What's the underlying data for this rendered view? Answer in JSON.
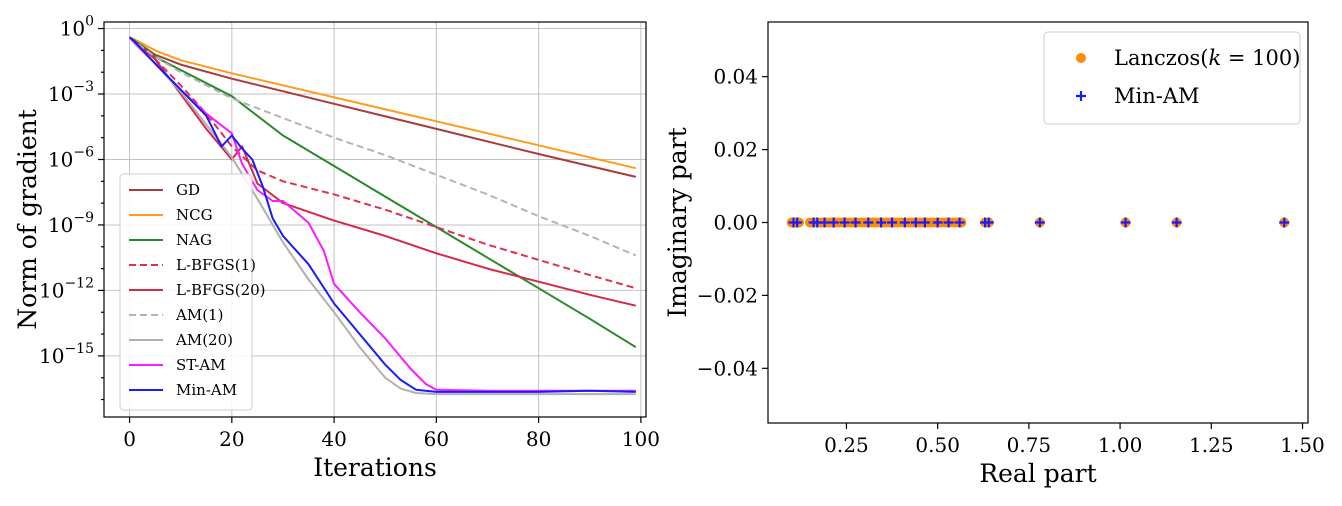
{
  "chart_data": [
    {
      "type": "line",
      "title": "",
      "xlabel": "Iterations",
      "ylabel": "Norm of gradient",
      "xlim": [
        -5,
        101
      ],
      "ylim_log10": [
        -17.8,
        0.3
      ],
      "yscale": "log",
      "grid": true,
      "legend_placement": "lower-left",
      "xticks": [
        0,
        20,
        40,
        60,
        80,
        100
      ],
      "yticks_exp": [
        0,
        -3,
        -6,
        -9,
        -12,
        -15
      ],
      "series": [
        {
          "name": "GD",
          "color": "#a83c3c",
          "dash": "solid",
          "x": [
            0,
            1,
            5,
            10,
            20,
            40,
            60,
            80,
            99
          ],
          "y_log10": [
            -0.4,
            -0.55,
            -1.2,
            -1.65,
            -2.3,
            -3.45,
            -4.6,
            -5.75,
            -6.8
          ]
        },
        {
          "name": "NCG",
          "color": "#ff9c1a",
          "dash": "solid",
          "x": [
            0,
            1,
            5,
            10,
            20,
            40,
            60,
            80,
            99
          ],
          "y_log10": [
            -0.4,
            -0.5,
            -1.0,
            -1.45,
            -2.05,
            -3.15,
            -4.25,
            -5.35,
            -6.4
          ]
        },
        {
          "name": "NAG",
          "color": "#2a8a2a",
          "dash": "solid",
          "x": [
            0,
            1,
            5,
            10,
            20,
            30,
            40,
            50,
            60,
            70,
            80,
            90,
            99
          ],
          "y_log10": [
            -0.4,
            -0.55,
            -1.3,
            -1.9,
            -3.1,
            -4.9,
            -6.3,
            -7.7,
            -9.1,
            -10.5,
            -11.9,
            -13.3,
            -14.6
          ]
        },
        {
          "name": "L-BFGS(1)",
          "color": "#e03050",
          "dash": "dashed",
          "x": [
            0,
            1,
            5,
            10,
            15,
            20,
            25,
            30,
            40,
            50,
            60,
            70,
            80,
            90,
            99
          ],
          "y_log10": [
            -0.4,
            -0.6,
            -1.4,
            -2.6,
            -3.9,
            -5.4,
            -6.5,
            -7.0,
            -7.6,
            -8.3,
            -9.1,
            -9.9,
            -10.6,
            -11.3,
            -11.9
          ]
        },
        {
          "name": "L-BFGS(20)",
          "color": "#d42a48",
          "dash": "solid",
          "x": [
            0,
            1,
            5,
            10,
            15,
            20,
            22,
            25,
            30,
            40,
            50,
            60,
            70,
            80,
            90,
            99
          ],
          "y_log10": [
            -0.4,
            -0.6,
            -1.4,
            -3.0,
            -4.6,
            -6.0,
            -5.4,
            -7.1,
            -8.0,
            -8.8,
            -9.5,
            -10.3,
            -11.0,
            -11.6,
            -12.2,
            -12.7
          ]
        },
        {
          "name": "AM(1)",
          "color": "#b4b4b4",
          "dash": "dashed",
          "x": [
            0,
            1,
            5,
            10,
            20,
            30,
            40,
            50,
            60,
            70,
            80,
            90,
            99
          ],
          "y_log10": [
            -0.4,
            -0.6,
            -1.3,
            -2.0,
            -3.2,
            -4.1,
            -5.0,
            -5.8,
            -6.7,
            -7.6,
            -8.6,
            -9.5,
            -10.4
          ]
        },
        {
          "name": "AM(20)",
          "color": "#b0b0b0",
          "dash": "solid",
          "x": [
            0,
            1,
            5,
            10,
            15,
            20,
            25,
            30,
            35,
            40,
            45,
            50,
            53,
            56,
            60,
            70,
            80,
            90,
            99
          ],
          "y_log10": [
            -0.4,
            -0.7,
            -1.6,
            -2.9,
            -4.4,
            -5.9,
            -7.8,
            -9.8,
            -11.5,
            -13.0,
            -14.6,
            -16.0,
            -16.5,
            -16.7,
            -16.75,
            -16.75,
            -16.75,
            -16.75,
            -16.75
          ]
        },
        {
          "name": "ST-AM",
          "color": "#ff1aff",
          "dash": "solid",
          "x": [
            0,
            1,
            5,
            10,
            15,
            20,
            22,
            25,
            28,
            30,
            35,
            38,
            40,
            45,
            50,
            55,
            58,
            60,
            70,
            80,
            90,
            99
          ],
          "y_log10": [
            -0.4,
            -0.65,
            -1.6,
            -2.8,
            -3.9,
            -4.8,
            -6.2,
            -7.4,
            -7.9,
            -7.9,
            -8.9,
            -10.2,
            -11.7,
            -13.0,
            -14.2,
            -15.6,
            -16.3,
            -16.55,
            -16.6,
            -16.6,
            -16.6,
            -16.6
          ]
        },
        {
          "name": "Min-AM",
          "color": "#1a1aff",
          "dash": "solid",
          "x": [
            0,
            1,
            5,
            10,
            15,
            18,
            20,
            22,
            24,
            26,
            28,
            30,
            35,
            40,
            45,
            50,
            53,
            56,
            60,
            70,
            80,
            90,
            99
          ],
          "y_log10": [
            -0.4,
            -0.6,
            -1.6,
            -2.8,
            -4.0,
            -5.4,
            -4.9,
            -5.5,
            -6.0,
            -7.2,
            -8.7,
            -9.5,
            -10.8,
            -12.6,
            -14.0,
            -15.4,
            -16.1,
            -16.55,
            -16.65,
            -16.65,
            -16.65,
            -16.6,
            -16.65
          ]
        }
      ]
    },
    {
      "type": "scatter",
      "title": "",
      "xlabel": "Real part",
      "ylabel": "Imaginary part",
      "xlim": [
        0.035,
        1.515
      ],
      "ylim": [
        -0.055,
        0.055
      ],
      "grid": false,
      "legend_placement": "upper-right",
      "xticks": [
        0.25,
        0.5,
        0.75,
        1.0,
        1.25,
        1.5
      ],
      "xtick_labels": [
        "0.25",
        "0.50",
        "0.75",
        "1.00",
        "1.25",
        "1.50"
      ],
      "yticks": [
        0.04,
        0.02,
        0.0,
        -0.02,
        -0.04
      ],
      "ytick_labels": [
        "0.04",
        "0.02",
        "0.00",
        "−0.02",
        "−0.04"
      ],
      "series": [
        {
          "name_prefix": "Lanczos(",
          "name_var": "k",
          "name_suffix": " = 100)",
          "marker": "circle",
          "color": "#ff8c00",
          "x": [
            0.1,
            0.105,
            0.11,
            0.115,
            0.12,
            0.15,
            0.16,
            0.17,
            0.18,
            0.19,
            0.2,
            0.21,
            0.22,
            0.23,
            0.24,
            0.25,
            0.26,
            0.27,
            0.28,
            0.29,
            0.3,
            0.31,
            0.32,
            0.33,
            0.34,
            0.35,
            0.36,
            0.37,
            0.38,
            0.39,
            0.4,
            0.41,
            0.42,
            0.43,
            0.44,
            0.45,
            0.46,
            0.47,
            0.48,
            0.49,
            0.5,
            0.51,
            0.52,
            0.53,
            0.54,
            0.55,
            0.56,
            0.565,
            0.63,
            0.64,
            0.78,
            1.015,
            1.155,
            1.45
          ],
          "y": [
            0,
            0,
            0,
            0,
            0,
            0,
            0,
            0,
            0,
            0,
            0,
            0,
            0,
            0,
            0,
            0,
            0,
            0,
            0,
            0,
            0,
            0,
            0,
            0,
            0,
            0,
            0,
            0,
            0,
            0,
            0,
            0,
            0,
            0,
            0,
            0,
            0,
            0,
            0,
            0,
            0,
            0,
            0,
            0,
            0,
            0,
            0,
            0,
            0,
            0,
            0,
            0,
            0,
            0
          ]
        },
        {
          "name": "Min-AM",
          "marker": "plus",
          "color": "#1a1aff",
          "x": [
            0.105,
            0.115,
            0.16,
            0.17,
            0.19,
            0.215,
            0.245,
            0.275,
            0.31,
            0.345,
            0.375,
            0.41,
            0.44,
            0.465,
            0.5,
            0.53,
            0.56,
            0.63,
            0.64,
            0.78,
            1.015,
            1.155,
            1.45
          ],
          "y": [
            0,
            0,
            0,
            0,
            0,
            0,
            0,
            0,
            0,
            0,
            0,
            0,
            0,
            0,
            0,
            0,
            0,
            0,
            0,
            0,
            0,
            0,
            0
          ]
        }
      ]
    }
  ]
}
